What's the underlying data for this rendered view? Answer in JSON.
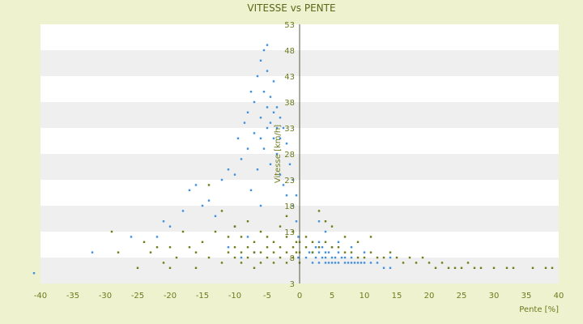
{
  "chart_data": {
    "type": "scatter",
    "title": "VITESSE vs PENTE",
    "xlabel": "Pente [%]",
    "ylabel": "Vitesse [km/h]",
    "xlim": [
      -40,
      40
    ],
    "ylim": [
      3,
      53
    ],
    "x_ticks": [
      -40,
      -35,
      -30,
      -25,
      -20,
      -15,
      -10,
      -5,
      0,
      5,
      10,
      15,
      20,
      25,
      30,
      35,
      40
    ],
    "y_ticks": [
      3,
      8,
      13,
      18,
      23,
      28,
      33,
      38,
      43,
      48,
      53
    ],
    "grid": "horizontal bands",
    "legend": "none",
    "colors": {
      "background": "#eef2cf",
      "plot_bg": "#ffffff",
      "band": "#efefef",
      "series_blue": "#3f8fe0",
      "series_olive": "#6f7a12"
    },
    "series": [
      {
        "color": "#3f8fe0",
        "marker": "dot",
        "points": [
          [
            -41,
            5
          ],
          [
            -32,
            9
          ],
          [
            -26,
            12
          ],
          [
            -22,
            12
          ],
          [
            -21,
            15
          ],
          [
            -20,
            14
          ],
          [
            -18,
            17
          ],
          [
            -17,
            21
          ],
          [
            -16,
            22
          ],
          [
            -15,
            18
          ],
          [
            -14,
            19
          ],
          [
            -13,
            16
          ],
          [
            -12,
            23
          ],
          [
            -11,
            10
          ],
          [
            -11,
            25
          ],
          [
            -10,
            14
          ],
          [
            -10,
            24
          ],
          [
            -9.5,
            31
          ],
          [
            -9,
            8
          ],
          [
            -9,
            27
          ],
          [
            -8.5,
            34
          ],
          [
            -8,
            12
          ],
          [
            -8,
            29
          ],
          [
            -8,
            36
          ],
          [
            -7.5,
            21
          ],
          [
            -7.5,
            40
          ],
          [
            -7,
            9
          ],
          [
            -7,
            32
          ],
          [
            -7,
            38
          ],
          [
            -6.5,
            25
          ],
          [
            -6.5,
            43
          ],
          [
            -6,
            18
          ],
          [
            -6,
            31
          ],
          [
            -6,
            35
          ],
          [
            -6,
            46
          ],
          [
            -5.5,
            29
          ],
          [
            -5.5,
            40
          ],
          [
            -5.5,
            48
          ],
          [
            -5,
            33
          ],
          [
            -5,
            37
          ],
          [
            -5,
            44
          ],
          [
            -5,
            49
          ],
          [
            -4.5,
            26
          ],
          [
            -4.5,
            34
          ],
          [
            -4.5,
            39
          ],
          [
            -4,
            31
          ],
          [
            -4,
            36
          ],
          [
            -4,
            42
          ],
          [
            -3.5,
            28
          ],
          [
            -3.5,
            33
          ],
          [
            -3.5,
            37
          ],
          [
            -3,
            31
          ],
          [
            -3,
            35
          ],
          [
            -3,
            24
          ],
          [
            -2.5,
            33
          ],
          [
            -2.5,
            22
          ],
          [
            -2,
            30
          ],
          [
            -2,
            20
          ],
          [
            -1.5,
            26
          ],
          [
            -1,
            18
          ],
          [
            -1,
            23
          ],
          [
            -0.5,
            15
          ],
          [
            -0.5,
            20
          ],
          [
            -0.2,
            8
          ],
          [
            -0.2,
            12
          ],
          [
            1,
            8
          ],
          [
            1.5,
            9
          ],
          [
            2,
            7
          ],
          [
            2,
            9
          ],
          [
            2.5,
            8
          ],
          [
            2.5,
            10
          ],
          [
            3,
            7
          ],
          [
            3,
            9
          ],
          [
            3,
            11
          ],
          [
            3.5,
            8
          ],
          [
            3.5,
            10
          ],
          [
            4,
            7
          ],
          [
            4,
            8
          ],
          [
            4,
            9
          ],
          [
            4.5,
            7
          ],
          [
            4.5,
            9
          ],
          [
            5,
            7
          ],
          [
            5,
            8
          ],
          [
            5,
            10
          ],
          [
            5.5,
            7
          ],
          [
            5.5,
            8
          ],
          [
            6,
            7
          ],
          [
            6,
            9
          ],
          [
            6.5,
            8
          ],
          [
            7,
            7
          ],
          [
            7,
            8
          ],
          [
            7.5,
            7
          ],
          [
            8,
            7
          ],
          [
            8,
            8
          ],
          [
            8.5,
            7
          ],
          [
            9,
            7
          ],
          [
            9.5,
            7
          ],
          [
            10,
            7
          ],
          [
            11,
            7
          ],
          [
            12,
            7
          ],
          [
            13,
            6
          ],
          [
            14,
            6
          ],
          [
            3,
            15
          ],
          [
            4,
            13
          ],
          [
            6,
            11
          ],
          [
            8,
            10
          ],
          [
            10,
            9
          ],
          [
            14,
            8
          ]
        ]
      },
      {
        "color": "#6f7a12",
        "marker": "dot",
        "points": [
          [
            -29,
            13
          ],
          [
            -28,
            9
          ],
          [
            -25,
            6
          ],
          [
            -24,
            11
          ],
          [
            -23,
            9
          ],
          [
            -22,
            10
          ],
          [
            -21,
            7
          ],
          [
            -20,
            6
          ],
          [
            -20,
            10
          ],
          [
            -19,
            8
          ],
          [
            -18,
            13
          ],
          [
            -17,
            10
          ],
          [
            -16,
            9
          ],
          [
            -16,
            6
          ],
          [
            -15,
            11
          ],
          [
            -14,
            8
          ],
          [
            -14,
            22
          ],
          [
            -13,
            13
          ],
          [
            -12,
            7
          ],
          [
            -12,
            17
          ],
          [
            -11,
            9
          ],
          [
            -11,
            12
          ],
          [
            -10,
            8
          ],
          [
            -10,
            10
          ],
          [
            -10,
            14
          ],
          [
            -9,
            7
          ],
          [
            -9,
            9
          ],
          [
            -9,
            12
          ],
          [
            -8,
            8
          ],
          [
            -8,
            10
          ],
          [
            -8,
            15
          ],
          [
            -7,
            6
          ],
          [
            -7,
            9
          ],
          [
            -7,
            11
          ],
          [
            -6,
            7
          ],
          [
            -6,
            9
          ],
          [
            -6,
            13
          ],
          [
            -5,
            8
          ],
          [
            -5,
            10
          ],
          [
            -5,
            12
          ],
          [
            -4,
            7
          ],
          [
            -4,
            9
          ],
          [
            -4,
            11
          ],
          [
            -3,
            8
          ],
          [
            -3,
            10
          ],
          [
            -3,
            14
          ],
          [
            -2,
            7
          ],
          [
            -2,
            9
          ],
          [
            -2,
            12
          ],
          [
            -2,
            16
          ],
          [
            -1,
            8
          ],
          [
            -1,
            10
          ],
          [
            -1,
            13
          ],
          [
            -0.5,
            9
          ],
          [
            -0.5,
            11
          ],
          [
            0,
            7
          ],
          [
            0,
            9
          ],
          [
            0,
            11
          ],
          [
            1,
            10
          ],
          [
            1,
            12
          ],
          [
            2,
            9
          ],
          [
            2,
            11
          ],
          [
            3,
            10
          ],
          [
            4,
            11
          ],
          [
            5,
            10
          ],
          [
            6,
            10
          ],
          [
            7,
            9
          ],
          [
            8,
            9
          ],
          [
            9,
            8
          ],
          [
            10,
            8
          ],
          [
            11,
            9
          ],
          [
            12,
            8
          ],
          [
            13,
            8
          ],
          [
            14,
            9
          ],
          [
            15,
            8
          ],
          [
            16,
            7
          ],
          [
            17,
            8
          ],
          [
            18,
            7
          ],
          [
            19,
            8
          ],
          [
            20,
            7
          ],
          [
            21,
            6
          ],
          [
            22,
            7
          ],
          [
            23,
            6
          ],
          [
            24,
            6
          ],
          [
            25,
            6
          ],
          [
            26,
            7
          ],
          [
            27,
            6
          ],
          [
            28,
            6
          ],
          [
            30,
            6
          ],
          [
            32,
            6
          ],
          [
            33,
            6
          ],
          [
            36,
            6
          ],
          [
            38,
            6
          ],
          [
            39,
            6
          ],
          [
            3,
            17
          ],
          [
            4,
            15
          ],
          [
            5,
            14
          ],
          [
            7,
            12
          ],
          [
            9,
            11
          ],
          [
            11,
            12
          ]
        ]
      }
    ]
  }
}
